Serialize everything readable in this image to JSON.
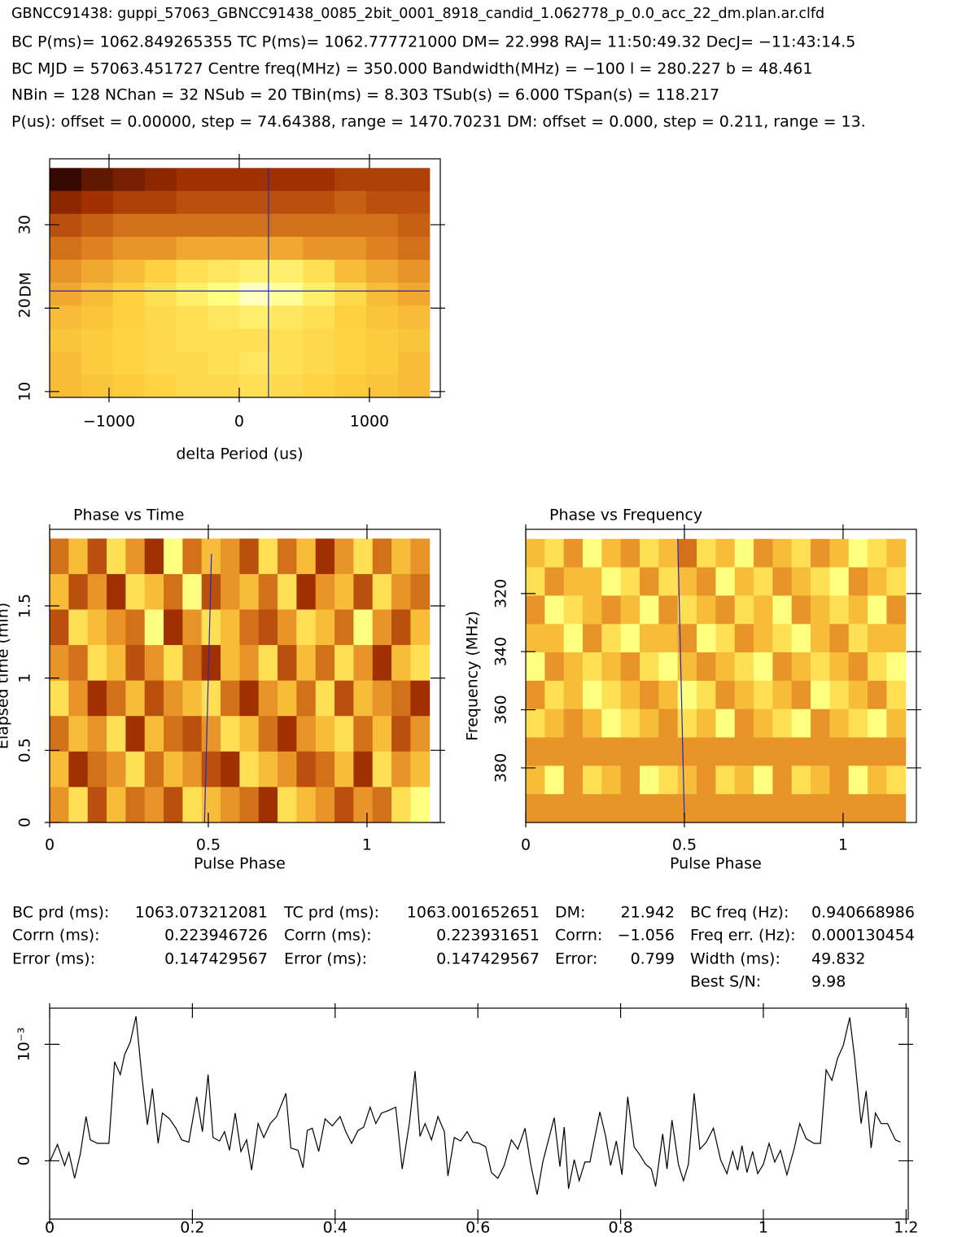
{
  "header": [
    "GBNCC91438: guppi_57063_GBNCC91438_0085_2bit_0001_8918_candid_1.062778_p_0.0_acc_22_dm.plan.ar.clfd",
    "BC P(ms)= 1062.849265355 TC P(ms)= 1062.777721000 DM= 22.998 RAJ= 11:50:49.32 DecJ= −11:43:14.5",
    "BC MJD = 57063.451727 Centre freq(MHz) = 350.000 Bandwidth(MHz) = −100 l = 280.227 b = 48.461",
    "NBin = 128 NChan = 32 NSub = 20 TBin(ms) = 8.303 TSub(s) = 6.000 TSpan(s) = 118.217",
    "P(us): offset = 0.00000, step = 74.64388, range = 1470.70231 DM: offset = 0.000, step = 0.211, range = 13."
  ],
  "stats": [
    [
      "BC prd (ms):",
      "1063.073212081",
      "TC prd (ms):",
      "1063.001652651",
      "DM:",
      "21.942",
      "BC freq (Hz):",
      "0.940668986"
    ],
    [
      "Corrn (ms):",
      "0.223946726",
      "Corrn (ms):",
      "0.223931651",
      "Corrn:",
      "−1.056",
      "Freq err. (Hz):",
      "0.000130454"
    ],
    [
      "Error (ms):",
      "0.147429567",
      "Error (ms):",
      "0.147429567",
      "Error:",
      "0.799",
      "Width (ms):",
      "49.832"
    ],
    [
      null,
      null,
      null,
      null,
      null,
      null,
      "Best S/N:",
      "9.98"
    ]
  ],
  "chart_data": [
    {
      "type": "heatmap",
      "xlabel": "delta Period (us)",
      "ylabel": "DM",
      "colormap": "heat",
      "zlim": [
        0,
        1
      ],
      "xlim": [
        -1456,
        1544
      ],
      "ylim": [
        9.3,
        37.9
      ],
      "xticks": [
        {
          "value": -1000,
          "label": "−1000"
        },
        0,
        1000
      ],
      "yticks": [
        10,
        20,
        30
      ],
      "x_extent": [
        -1456,
        1462
      ],
      "y_extent": [
        36.8,
        9.3
      ],
      "crosshair": {
        "x": 225,
        "y": 22.05
      },
      "line_color": "#2028c8",
      "z": [
        [
          0.05,
          0.15,
          0.2,
          0.25,
          0.3,
          0.3,
          0.3,
          0.3,
          0.3,
          0.35,
          0.35,
          0.35
        ],
        [
          0.25,
          0.3,
          0.35,
          0.35,
          0.4,
          0.4,
          0.4,
          0.4,
          0.4,
          0.45,
          0.4,
          0.4
        ],
        [
          0.4,
          0.45,
          0.5,
          0.5,
          0.5,
          0.5,
          0.5,
          0.5,
          0.5,
          0.5,
          0.5,
          0.45
        ],
        [
          0.5,
          0.55,
          0.6,
          0.6,
          0.65,
          0.65,
          0.65,
          0.65,
          0.6,
          0.6,
          0.55,
          0.5
        ],
        [
          0.6,
          0.65,
          0.7,
          0.75,
          0.8,
          0.82,
          0.85,
          0.85,
          0.8,
          0.7,
          0.65,
          0.6
        ],
        [
          0.65,
          0.7,
          0.75,
          0.8,
          0.85,
          0.9,
          0.95,
          0.92,
          0.85,
          0.78,
          0.7,
          0.65
        ],
        [
          0.7,
          0.72,
          0.75,
          0.78,
          0.8,
          0.82,
          0.85,
          0.82,
          0.8,
          0.75,
          0.72,
          0.7
        ],
        [
          0.72,
          0.74,
          0.76,
          0.78,
          0.8,
          0.8,
          0.8,
          0.8,
          0.78,
          0.76,
          0.74,
          0.72
        ],
        [
          0.7,
          0.74,
          0.76,
          0.78,
          0.78,
          0.8,
          0.82,
          0.8,
          0.78,
          0.76,
          0.74,
          0.7
        ],
        [
          0.7,
          0.72,
          0.74,
          0.76,
          0.78,
          0.78,
          0.8,
          0.78,
          0.76,
          0.74,
          0.72,
          0.7
        ]
      ]
    },
    {
      "type": "heatmap",
      "title": "Phase vs Time",
      "xlabel": "Pulse Phase",
      "ylabel": "Elapsed time (min)",
      "colormap": "heat",
      "zlim": [
        0,
        10
      ],
      "xlim": [
        0,
        1.231
      ],
      "ylim": [
        0,
        2.03
      ],
      "xticks": [
        0,
        0.5,
        1
      ],
      "yticks": [
        0,
        0.5,
        1,
        1.5
      ],
      "x_extent": [
        0,
        1.197
      ],
      "y_extent": [
        1.966,
        0
      ],
      "trend": {
        "x": [
          0.488,
          0.51
        ],
        "y": [
          0,
          1.86
        ]
      },
      "line_color": "#2028c8",
      "z": [
        [
          5,
          7,
          4,
          8,
          6,
          3,
          9,
          5,
          7,
          6,
          4,
          8,
          5,
          7,
          3,
          6,
          8,
          5,
          7,
          6
        ],
        [
          7,
          4,
          6,
          3,
          8,
          7,
          5,
          9,
          4,
          6,
          7,
          5,
          8,
          3,
          6,
          7,
          4,
          8,
          6,
          5
        ],
        [
          4,
          8,
          7,
          6,
          5,
          9,
          3,
          6,
          8,
          7,
          5,
          4,
          6,
          8,
          7,
          5,
          9,
          6,
          4,
          7
        ],
        [
          6,
          5,
          8,
          7,
          4,
          6,
          8,
          5,
          3,
          7,
          6,
          8,
          4,
          7,
          5,
          8,
          6,
          3,
          7,
          8
        ],
        [
          8,
          6,
          3,
          5,
          7,
          4,
          6,
          7,
          8,
          5,
          3,
          6,
          7,
          5,
          8,
          4,
          7,
          6,
          5,
          3
        ],
        [
          5,
          7,
          6,
          8,
          3,
          7,
          5,
          4,
          6,
          8,
          7,
          5,
          3,
          6,
          7,
          8,
          5,
          7,
          4,
          6
        ],
        [
          7,
          3,
          5,
          6,
          8,
          5,
          7,
          6,
          4,
          3,
          8,
          7,
          6,
          4,
          5,
          7,
          3,
          8,
          6,
          7
        ],
        [
          6,
          8,
          4,
          7,
          5,
          6,
          4,
          8,
          7,
          6,
          5,
          3,
          8,
          7,
          6,
          4,
          6,
          5,
          8,
          9
        ]
      ]
    },
    {
      "type": "heatmap",
      "title": "Phase vs Frequency",
      "xlabel": "Pulse Phase",
      "ylabel": "Frequency (MHz)",
      "colormap": "heat",
      "zlim": [
        0,
        10
      ],
      "xlim": [
        0,
        1.231
      ],
      "ylim": [
        398.8,
        297.9
      ],
      "xticks": [
        0,
        0.5,
        1
      ],
      "yticks": [
        320,
        340,
        360,
        380
      ],
      "x_extent": [
        0,
        1.197
      ],
      "y_extent": [
        301.2,
        398.8
      ],
      "trend": {
        "x": [
          0.5,
          0.479
        ],
        "y": [
          397.4,
          301.2
        ]
      },
      "line_color": "#2028c8",
      "z": [
        [
          7,
          8,
          6,
          9,
          7,
          6,
          8,
          7,
          5,
          8,
          7,
          9,
          6,
          7,
          8,
          6,
          7,
          9,
          8,
          7
        ],
        [
          8,
          6,
          7,
          7,
          9,
          8,
          6,
          8,
          7,
          6,
          9,
          7,
          8,
          6,
          7,
          8,
          9,
          6,
          7,
          8
        ],
        [
          6,
          9,
          8,
          7,
          6,
          7,
          9,
          6,
          8,
          7,
          6,
          8,
          7,
          9,
          6,
          7,
          8,
          7,
          9,
          6
        ],
        [
          7,
          7,
          9,
          6,
          8,
          9,
          7,
          7,
          6,
          9,
          8,
          6,
          7,
          8,
          9,
          7,
          6,
          8,
          7,
          7
        ],
        [
          9,
          6,
          7,
          8,
          7,
          6,
          8,
          9,
          7,
          6,
          7,
          8,
          9,
          6,
          7,
          8,
          7,
          6,
          8,
          9
        ],
        [
          6,
          8,
          7,
          9,
          8,
          7,
          6,
          7,
          9,
          8,
          6,
          7,
          8,
          7,
          6,
          9,
          8,
          7,
          6,
          8
        ],
        [
          8,
          7,
          6,
          7,
          9,
          8,
          7,
          6,
          8,
          7,
          9,
          6,
          7,
          8,
          9,
          6,
          7,
          8,
          9,
          7
        ],
        [
          6,
          6,
          6,
          6,
          6,
          6,
          6,
          6,
          6,
          6,
          6,
          6,
          6,
          6,
          6,
          6,
          6,
          6,
          6,
          6
        ],
        [
          7,
          9,
          6,
          8,
          7,
          6,
          9,
          8,
          7,
          6,
          8,
          7,
          9,
          6,
          8,
          7,
          6,
          9,
          7,
          8
        ],
        [
          6,
          6,
          6,
          6,
          6,
          6,
          6,
          6,
          6,
          6,
          6,
          6,
          6,
          6,
          6,
          6,
          6,
          6,
          6,
          6
        ]
      ]
    },
    {
      "type": "line",
      "color": "#000000",
      "xlim": [
        0,
        1.203
      ],
      "ylim": [
        -0.0005,
        0.00131
      ],
      "xticks": [
        0,
        0.2,
        0.4,
        0.6,
        0.8,
        1,
        1.2
      ],
      "yticks": [
        0,
        {
          "value": 0.001,
          "label": "10⁻³"
        }
      ],
      "x": [
        0,
        0.011,
        0.021,
        0.027,
        0.035,
        0.043,
        0.051,
        0.057,
        0.067,
        0.076,
        0.083,
        0.091,
        0.099,
        0.105,
        0.113,
        0.121,
        0.129,
        0.137,
        0.144,
        0.152,
        0.158,
        0.168,
        0.177,
        0.185,
        0.195,
        0.206,
        0.214,
        0.222,
        0.229,
        0.238,
        0.245,
        0.252,
        0.26,
        0.268,
        0.276,
        0.283,
        0.292,
        0.3,
        0.309,
        0.318,
        0.331,
        0.338,
        0.348,
        0.355,
        0.361,
        0.368,
        0.377,
        0.386,
        0.396,
        0.407,
        0.415,
        0.423,
        0.432,
        0.44,
        0.449,
        0.457,
        0.465,
        0.474,
        0.485,
        0.494,
        0.504,
        0.512,
        0.519,
        0.526,
        0.535,
        0.544,
        0.553,
        0.558,
        0.567,
        0.576,
        0.585,
        0.593,
        0.602,
        0.611,
        0.619,
        0.628,
        0.637,
        0.647,
        0.656,
        0.666,
        0.674,
        0.683,
        0.691,
        0.699,
        0.707,
        0.715,
        0.721,
        0.727,
        0.735,
        0.742,
        0.75,
        0.757,
        0.771,
        0.779,
        0.786,
        0.794,
        0.802,
        0.81,
        0.819,
        0.827,
        0.835,
        0.843,
        0.849,
        0.859,
        0.865,
        0.872,
        0.881,
        0.888,
        0.895,
        0.903,
        0.911,
        0.92,
        0.93,
        0.94,
        0.949,
        0.957,
        0.964,
        0.97,
        0.977,
        0.985,
        0.992,
        1,
        1.008,
        1.016,
        1.024,
        1.033,
        1.043,
        1.051,
        1.06,
        1.071,
        1.08,
        1.088,
        1.096,
        1.104,
        1.112,
        1.121,
        1.128,
        1.137,
        1.144,
        1.151,
        1.157,
        1.165,
        1.174,
        1.185,
        1.192
      ],
      "values": [
        -1e-05,
        0.00014,
        -4e-05,
        7e-05,
        -0.00015,
        6e-05,
        0.00038,
        0.00018,
        0.00015,
        0.00015,
        0.00015,
        0.00085,
        0.00074,
        0.00091,
        0.00102,
        0.00124,
        0.00074,
        0.00031,
        0.00062,
        0.00015,
        0.00041,
        0.00036,
        0.00028,
        0.00018,
        0.00016,
        0.00055,
        0.00025,
        0.00074,
        0.0002,
        0.00017,
        0.00025,
        9e-05,
        0.00041,
        8e-05,
        0.00018,
        -8e-05,
        0.00032,
        0.0002,
        0.00032,
        0.00038,
        0.00058,
        0.00011,
        9e-05,
        -6e-05,
        0.00026,
        0.00028,
        8e-05,
        0.00036,
        0.0003,
        0.00038,
        0.00025,
        0.00015,
        0.00026,
        0.00029,
        0.00046,
        0.00032,
        0.00041,
        0.00043,
        0.00046,
        -7e-05,
        0.00032,
        0.00077,
        0.00021,
        0.00032,
        0.00018,
        0.00038,
        0.00025,
        -0.00013,
        0.0002,
        0.00017,
        0.00025,
        0.00016,
        0.00015,
        0.00012,
        -0.0001,
        -0.00015,
        -4e-05,
        0.00018,
        0.0001,
        0.00028,
        -3e-05,
        -0.00029,
        -1e-05,
        0.00018,
        0.00037,
        -5e-05,
        0.00029,
        -0.00024,
        1e-05,
        -0.00017,
        -1e-05,
        -1e-05,
        0.00042,
        0.00021,
        -4e-05,
        0.00017,
        -0.00012,
        0.00055,
        0.00012,
        5e-05,
        -3e-05,
        -7e-05,
        -0.00022,
        0.00023,
        -7e-05,
        0.00035,
        -3e-05,
        -0.00017,
        -3e-05,
        0.00058,
        0.0001,
        0.00016,
        0.00028,
        1e-05,
        -0.00011,
        8e-05,
        -8e-05,
        0.00013,
        -0.0001,
        8e-05,
        -0.00011,
        -3e-05,
        0.00015,
        -1e-05,
        9e-05,
        -0.00012,
        0.0001,
        0.00032,
        0.00019,
        0.00015,
        0.00015,
        0.00078,
        0.00069,
        0.00088,
        0.00099,
        0.00123,
        0.00088,
        0.00032,
        0.0006,
        0.00011,
        0.00041,
        0.00032,
        0.00032,
        0.00018,
        0.00016
      ]
    }
  ]
}
